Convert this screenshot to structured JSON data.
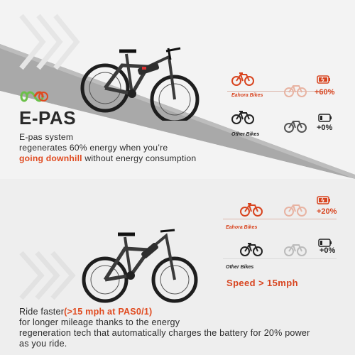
{
  "top": {
    "title": "E-PAS",
    "desc_line1": "E-pas system",
    "desc_line2": "regenerates 60% energy when you’re",
    "desc_highlight": "going downhill",
    "desc_rest": " without energy consumption",
    "brand_label": "Eahora Bikes",
    "other_label": "Other Bikes",
    "brand_pct": "+60%",
    "other_pct": "+0%"
  },
  "bottom": {
    "brand_label": "Eahora Bikes",
    "other_label": "Other Bikes",
    "brand_pct": "+20%",
    "other_pct": "+0%",
    "speed": "Speed > 15mph",
    "desc_prefix": "Ride faster",
    "desc_highlight": "(>15 mph at PAS0/1)",
    "desc_line2": "for longer mileage thanks to the energy",
    "desc_line3": "regeneration tech that automatically charges the battery for 20% power",
    "desc_line4": "as you ride."
  },
  "colors": {
    "accent": "#e04a1f",
    "dark": "#222222",
    "slope": "#9a9a9a"
  },
  "icons": [
    "infinity-recycle-icon",
    "bicycle-icon",
    "battery-charging-icon",
    "battery-icon",
    "chevron-arrows"
  ]
}
